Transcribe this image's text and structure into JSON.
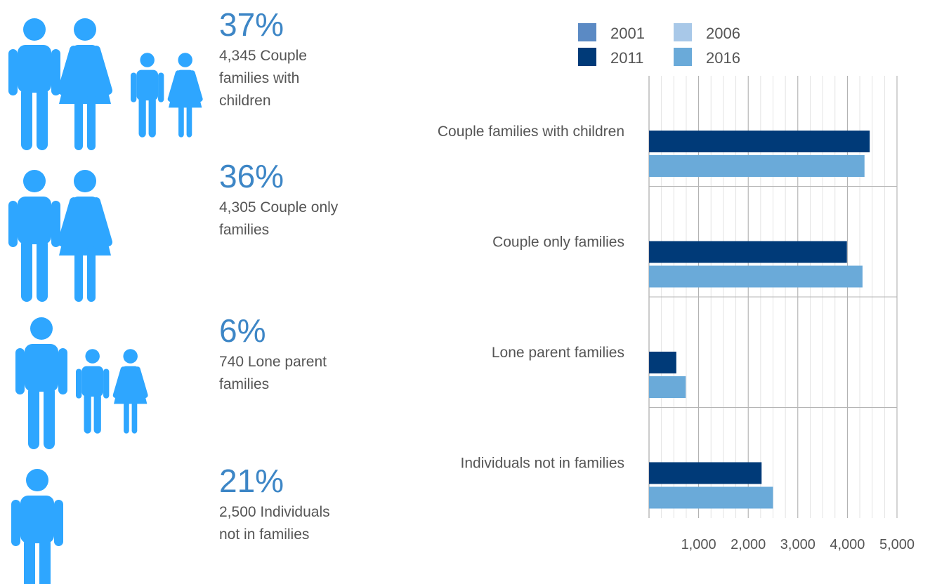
{
  "colors": {
    "icon": "#2ea6ff",
    "pct_text": "#3d86c6",
    "body_text": "#555555"
  },
  "groups": [
    {
      "pct": "37%",
      "desc_lines": [
        "4,345 Couple",
        "families with",
        "children"
      ],
      "icons": [
        "man-icon",
        "woman-icon",
        "boy-icon",
        "girl-icon"
      ]
    },
    {
      "pct": "36%",
      "desc_lines": [
        "4,305 Couple only",
        "families"
      ],
      "icons": [
        "man-icon",
        "woman-icon"
      ]
    },
    {
      "pct": "6%",
      "desc_lines": [
        "740 Lone parent",
        "families"
      ],
      "icons": [
        "man-icon",
        "boy-icon",
        "girl-icon"
      ]
    },
    {
      "pct": "21%",
      "desc_lines": [
        "2,500 Individuals",
        "not in families"
      ],
      "icons": [
        "man-icon"
      ]
    }
  ],
  "chart_data": {
    "type": "bar",
    "orientation": "horizontal",
    "categories": [
      "Couple families with children",
      "Couple only families",
      "Lone parent families",
      "Individuals not in families"
    ],
    "series": [
      {
        "name": "2001",
        "color": "#5b8ac4",
        "values": [
          null,
          null,
          null,
          null
        ]
      },
      {
        "name": "2006",
        "color": "#a8c8e8",
        "values": [
          null,
          null,
          null,
          null
        ]
      },
      {
        "name": "2011",
        "color": "#003a78",
        "values": [
          4450,
          3990,
          550,
          2270
        ]
      },
      {
        "name": "2016",
        "color": "#6aaad9",
        "values": [
          4345,
          4305,
          740,
          2500
        ]
      }
    ],
    "xlim": [
      0,
      5000
    ],
    "xticks": [
      1000,
      2000,
      3000,
      4000,
      5000
    ],
    "xtick_labels": [
      "1,000",
      "2,000",
      "3,000",
      "4,000",
      "5,000"
    ],
    "grid": true,
    "legend_position": "top"
  }
}
